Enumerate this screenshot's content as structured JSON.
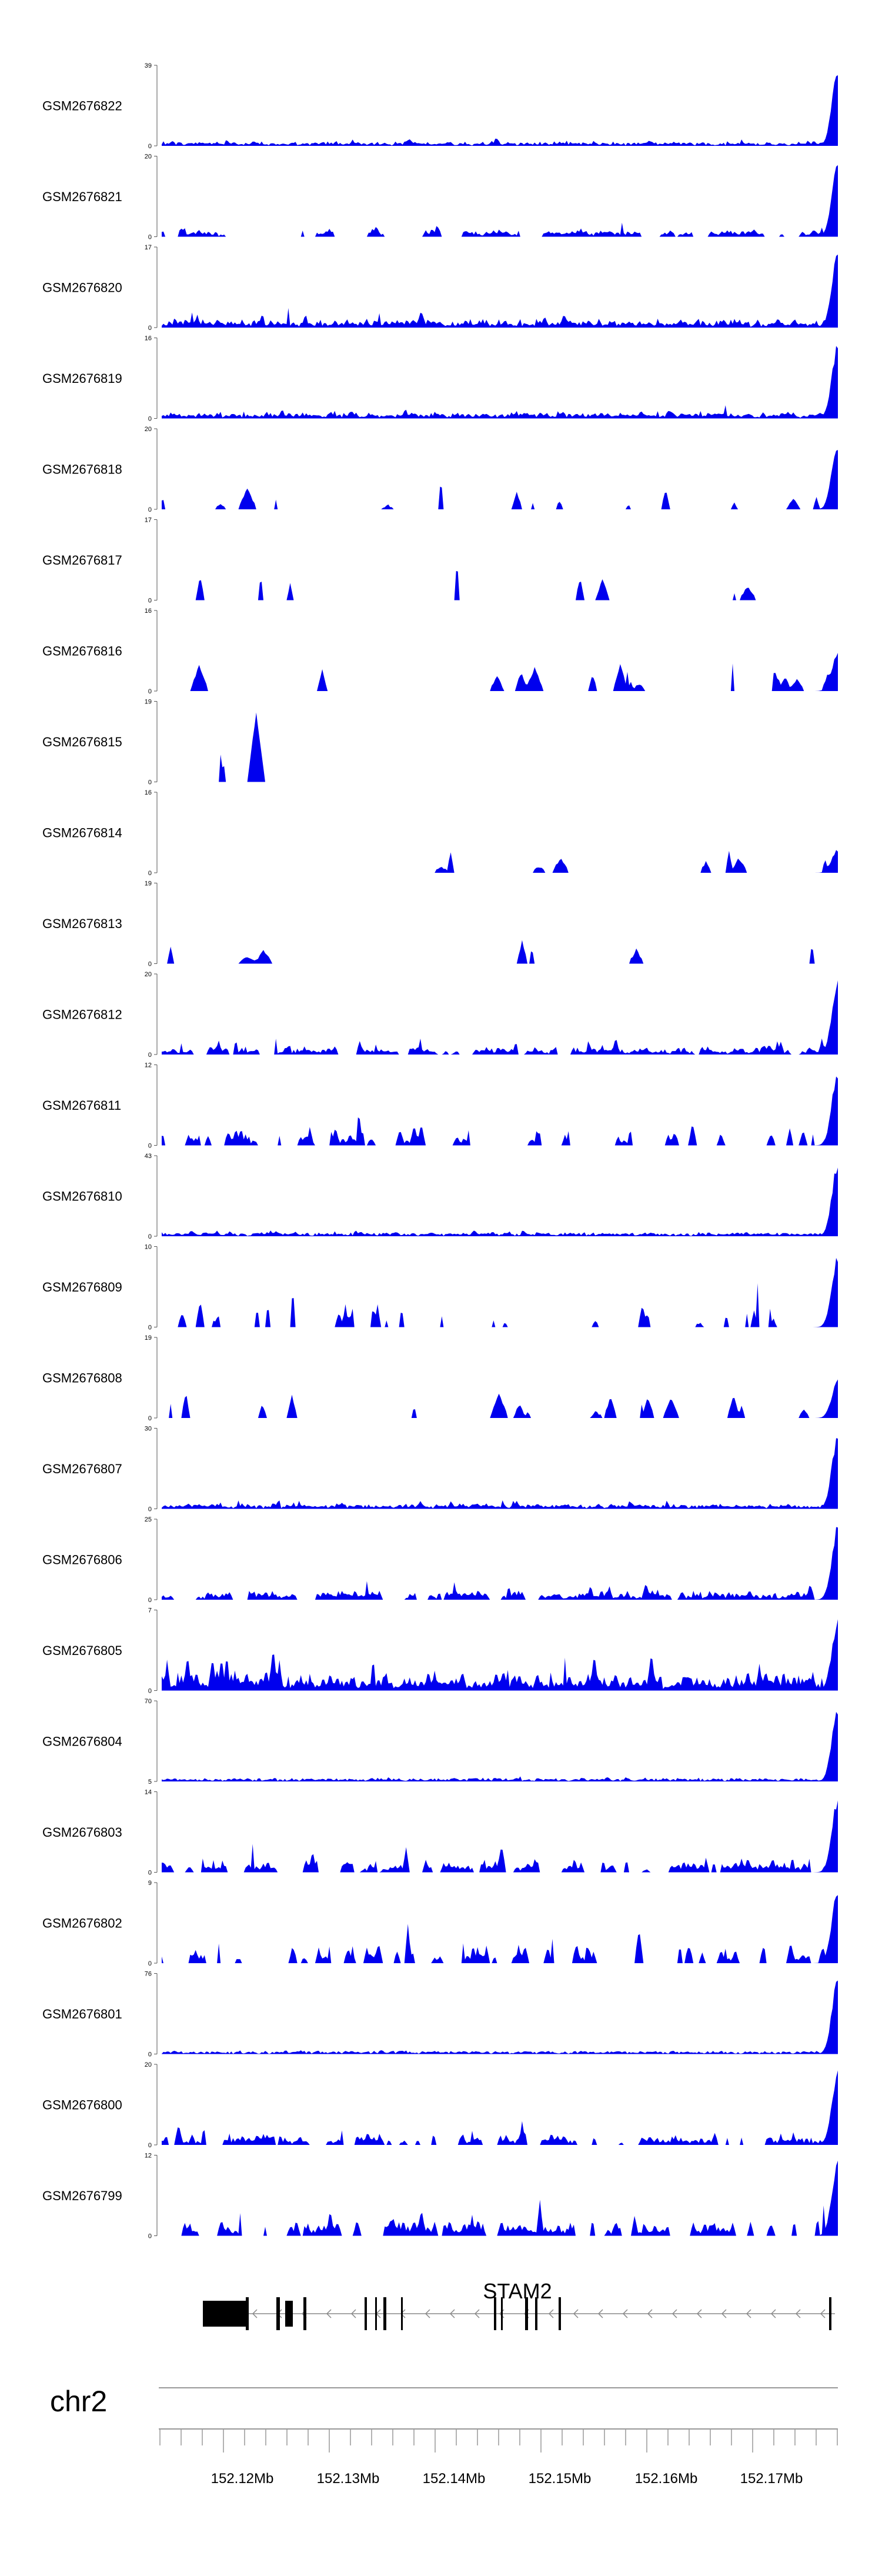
{
  "chart_data": {
    "type": "area",
    "chromosome": "chr2",
    "gene": {
      "name": "STAM2",
      "strand": "-"
    },
    "x_ticks": [
      "152.12Mb",
      "152.13Mb",
      "152.14Mb",
      "152.15Mb",
      "152.16Mb",
      "152.17Mb"
    ],
    "tracks": [
      {
        "name": "GSM2676822",
        "ymax": 39,
        "ymin": 0,
        "peak": 0.95,
        "noise": 0.08,
        "sparse": 0.0
      },
      {
        "name": "GSM2676821",
        "ymax": 20,
        "ymin": 0,
        "peak": 0.95,
        "noise": 0.18,
        "sparse": 0.2
      },
      {
        "name": "GSM2676820",
        "ymax": 17,
        "ymin": 0,
        "peak": 0.95,
        "noise": 0.22,
        "sparse": 0.0
      },
      {
        "name": "GSM2676819",
        "ymax": 16,
        "ymin": 0,
        "peak": 0.95,
        "noise": 0.16,
        "sparse": 0.0
      },
      {
        "name": "GSM2676818",
        "ymax": 20,
        "ymin": 0,
        "peak": 0.85,
        "noise": 0.55,
        "sparse": 0.7
      },
      {
        "name": "GSM2676817",
        "ymax": 17,
        "ymin": 0,
        "peak": 0.0,
        "noise": 0.7,
        "sparse": 0.8
      },
      {
        "name": "GSM2676816",
        "ymax": 16,
        "ymin": 0,
        "peak": 0.5,
        "noise": 0.7,
        "sparse": 0.7
      },
      {
        "name": "GSM2676815",
        "ymax": 19,
        "ymin": 0,
        "peak": 0.0,
        "noise": 0.85,
        "sparse": 0.9
      },
      {
        "name": "GSM2676814",
        "ymax": 16,
        "ymin": 0,
        "peak": 0.3,
        "noise": 0.65,
        "sparse": 0.8
      },
      {
        "name": "GSM2676813",
        "ymax": 19,
        "ymin": 0,
        "peak": 0.0,
        "noise": 0.8,
        "sparse": 0.9
      },
      {
        "name": "GSM2676812",
        "ymax": 20,
        "ymin": 0,
        "peak": 0.95,
        "noise": 0.2,
        "sparse": 0.1
      },
      {
        "name": "GSM2676811",
        "ymax": 12,
        "ymin": 0,
        "peak": 0.95,
        "noise": 0.5,
        "sparse": 0.4
      },
      {
        "name": "GSM2676810",
        "ymax": 43,
        "ymin": 0,
        "peak": 0.95,
        "noise": 0.07,
        "sparse": 0.0
      },
      {
        "name": "GSM2676809",
        "ymax": 10,
        "ymin": 0,
        "peak": 0.9,
        "noise": 0.6,
        "sparse": 0.5
      },
      {
        "name": "GSM2676808",
        "ymax": 19,
        "ymin": 0,
        "peak": 0.5,
        "noise": 0.75,
        "sparse": 0.7
      },
      {
        "name": "GSM2676807",
        "ymax": 30,
        "ymin": 0,
        "peak": 0.95,
        "noise": 0.12,
        "sparse": 0.0
      },
      {
        "name": "GSM2676806",
        "ymax": 25,
        "ymin": 0,
        "peak": 0.95,
        "noise": 0.22,
        "sparse": 0.1
      },
      {
        "name": "GSM2676805",
        "ymax": 7,
        "ymin": 0,
        "peak": 0.9,
        "noise": 0.55,
        "sparse": 0.0
      },
      {
        "name": "GSM2676804",
        "ymax": 70,
        "ymin": 5,
        "peak": 0.95,
        "noise": 0.05,
        "sparse": 0.0
      },
      {
        "name": "GSM2676803",
        "ymax": 14,
        "ymin": 0,
        "peak": 0.95,
        "noise": 0.35,
        "sparse": 0.2
      },
      {
        "name": "GSM2676802",
        "ymax": 9,
        "ymin": 0,
        "peak": 0.95,
        "noise": 0.55,
        "sparse": 0.3
      },
      {
        "name": "GSM2676801",
        "ymax": 76,
        "ymin": 0,
        "peak": 0.95,
        "noise": 0.04,
        "sparse": 0.0
      },
      {
        "name": "GSM2676800",
        "ymax": 20,
        "ymin": 0,
        "peak": 0.95,
        "noise": 0.3,
        "sparse": 0.2
      },
      {
        "name": "GSM2676799",
        "ymax": 12,
        "ymin": 0,
        "peak": 0.95,
        "noise": 0.45,
        "sparse": 0.2
      }
    ],
    "colors": {
      "signal": "#0000ee",
      "axis": "#555555",
      "gene": "#000000",
      "intron": "#888888"
    },
    "grid": false
  }
}
